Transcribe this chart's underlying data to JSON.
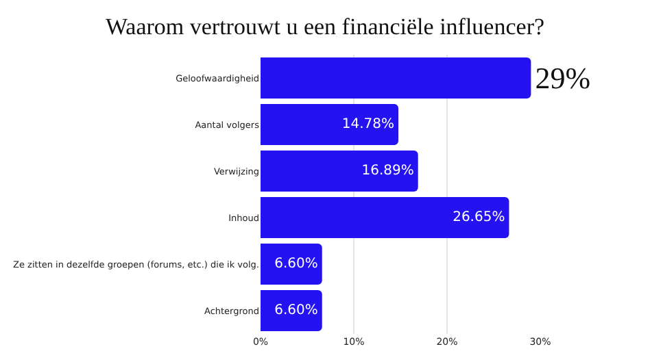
{
  "chart_data": {
    "type": "bar",
    "orientation": "horizontal",
    "title": "Waarom vertrouwt u een financiële influencer?",
    "categories": [
      "Geloofwaardigheid",
      "Aantal volgers",
      "Verwijzing",
      "Inhoud",
      "Ze zitten in dezelfde groepen (forums, etc.) die ik volg.",
      "Achtergrond"
    ],
    "values": [
      29,
      14.78,
      16.89,
      26.65,
      6.6,
      6.6
    ],
    "value_labels": [
      "29%",
      "14.78%",
      "16.89%",
      "26.65%",
      "6.60%",
      "6.60%"
    ],
    "color": "#2412f0",
    "xlim": [
      0,
      30
    ],
    "xticks": [
      {
        "value": 0,
        "label": "0%"
      },
      {
        "value": 10,
        "label": "10%"
      },
      {
        "value": 20,
        "label": "20%"
      },
      {
        "value": 30,
        "label": "30%"
      }
    ],
    "grid": "x"
  }
}
